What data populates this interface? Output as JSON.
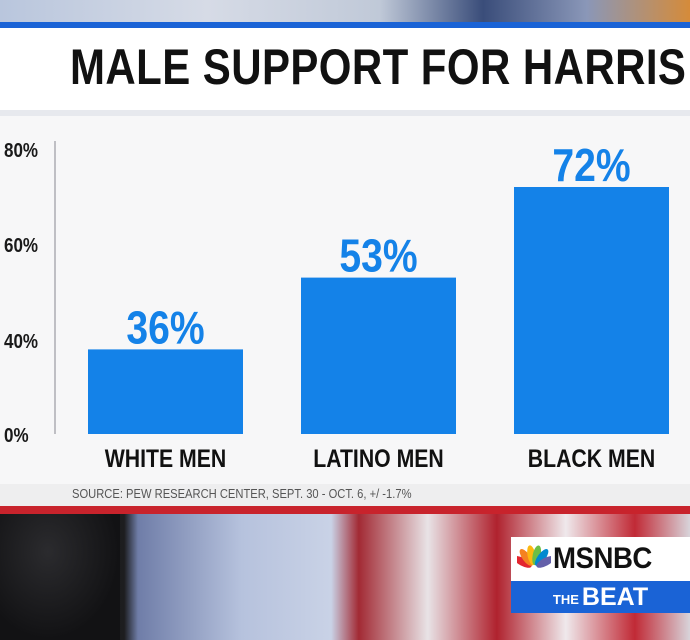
{
  "headline": "MALE SUPPORT FOR HARRIS",
  "source": "SOURCE: PEW RESEARCH CENTER, SEPT. 30 - OCT. 6, +/ -1.7%",
  "network": {
    "name": "MSNBC",
    "show_prefix": "THE",
    "show_name": "BEAT"
  },
  "colors": {
    "bar": "#1482e8",
    "accent_blue": "#1a63d6",
    "accent_red": "#c8232c"
  },
  "chart_data": {
    "type": "bar",
    "title": "MALE SUPPORT FOR HARRIS",
    "categories": [
      "WHITE MEN",
      "LATINO MEN",
      "BLACK MEN"
    ],
    "values": [
      36,
      53,
      72
    ],
    "data_labels": [
      "36%",
      "53%",
      "72%"
    ],
    "yticks": [
      "80%",
      "60%",
      "40%",
      "0%"
    ],
    "ylim": [
      0,
      80
    ],
    "grid": false,
    "legend": "none"
  }
}
